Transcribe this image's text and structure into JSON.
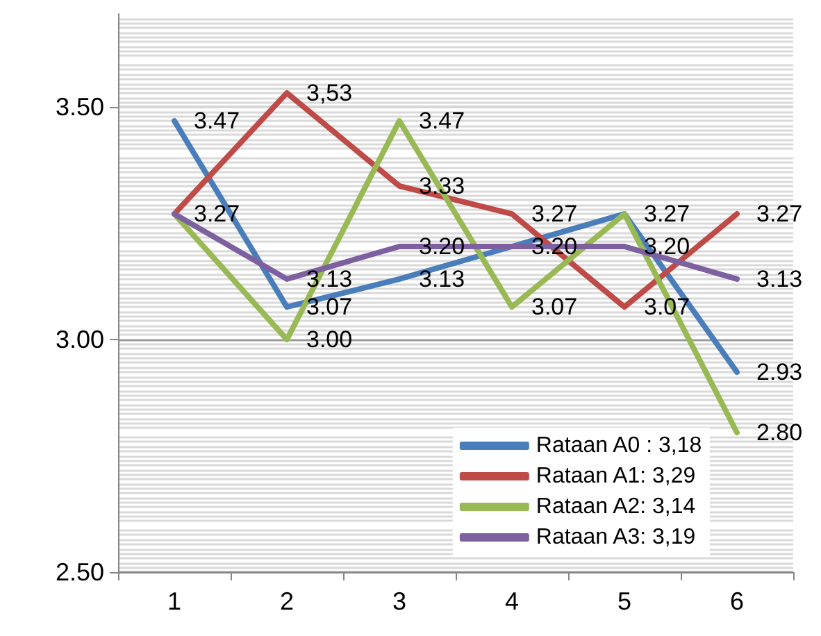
{
  "chart_data": {
    "type": "line",
    "categories": [
      "1",
      "2",
      "3",
      "4",
      "5",
      "6"
    ],
    "series": [
      {
        "name": "Rataan A0 : 3,18",
        "color": "#4a7ebb",
        "values": [
          3.47,
          3.07,
          3.13,
          3.2,
          3.27,
          2.93
        ],
        "value_labels": [
          "3.47",
          "3.07",
          "3.13",
          null,
          "3.27",
          "2.93"
        ]
      },
      {
        "name": "Rataan A1: 3,29",
        "color": "#be4b48",
        "values": [
          3.27,
          3.53,
          3.33,
          3.27,
          3.07,
          3.27
        ],
        "value_labels": [
          "3.27",
          "3,53",
          "3.33",
          "3.27",
          "3.07",
          "3.27"
        ]
      },
      {
        "name": "Rataan A2: 3,14",
        "color": "#98b954",
        "values": [
          3.27,
          3.0,
          3.47,
          3.07,
          3.27,
          2.8
        ],
        "value_labels": [
          null,
          "3.00",
          "3.47",
          "3.07",
          null,
          "2.80"
        ]
      },
      {
        "name": "Rataan A3: 3,19",
        "color": "#7d60a0",
        "values": [
          3.27,
          3.13,
          3.2,
          3.2,
          3.2,
          3.13
        ],
        "value_labels": [
          null,
          "3.13",
          "3.20",
          "3.20",
          "3.20",
          "3.13"
        ]
      }
    ],
    "ylim": [
      2.5,
      3.7
    ],
    "yticks": [
      {
        "value": 2.5,
        "label": "2.50"
      },
      {
        "value": 3.0,
        "label": "3.00"
      },
      {
        "value": 3.5,
        "label": "3.50"
      }
    ],
    "grid": "y",
    "legend": "bottom right",
    "marker": "none",
    "line_style": "solid"
  }
}
